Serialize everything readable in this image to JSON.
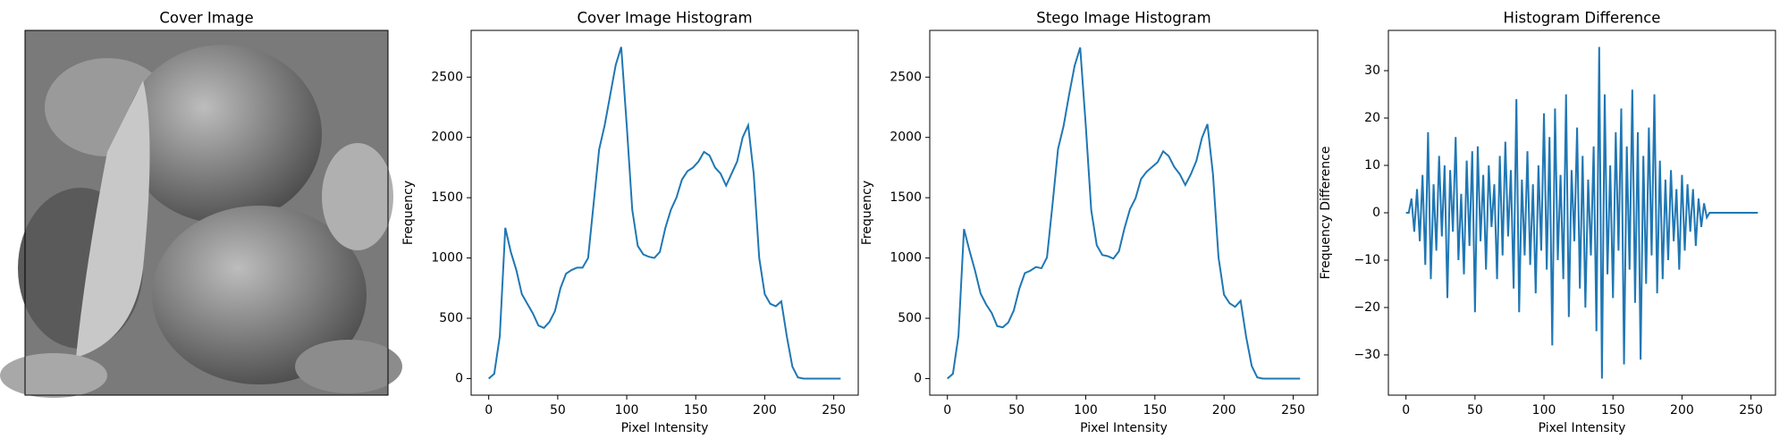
{
  "chart_data": [
    {
      "type": "image",
      "title": "Cover Image"
    },
    {
      "type": "line",
      "title": "Cover Image Histogram",
      "xlabel": "Pixel Intensity",
      "ylabel": "Frequency",
      "color": "#1f77b4",
      "x": [
        0,
        4,
        8,
        12,
        16,
        20,
        24,
        28,
        32,
        36,
        40,
        44,
        48,
        52,
        56,
        60,
        64,
        68,
        72,
        76,
        80,
        84,
        88,
        92,
        96,
        100,
        104,
        108,
        112,
        116,
        120,
        124,
        128,
        132,
        136,
        140,
        144,
        148,
        152,
        156,
        160,
        164,
        168,
        172,
        176,
        180,
        184,
        188,
        192,
        196,
        200,
        204,
        208,
        212,
        216,
        220,
        224,
        228,
        232,
        236,
        240,
        244,
        248,
        252,
        255
      ],
      "values": [
        0,
        40,
        350,
        1250,
        1050,
        900,
        700,
        620,
        540,
        440,
        420,
        470,
        560,
        750,
        870,
        900,
        920,
        920,
        1000,
        1450,
        1900,
        2100,
        2350,
        2600,
        2750,
        2100,
        1400,
        1100,
        1030,
        1010,
        1000,
        1050,
        1250,
        1400,
        1500,
        1650,
        1720,
        1750,
        1800,
        1880,
        1850,
        1750,
        1700,
        1600,
        1700,
        1800,
        2000,
        2100,
        1700,
        1000,
        700,
        620,
        600,
        640,
        350,
        100,
        10,
        0,
        0,
        0,
        0,
        0,
        0,
        0,
        0
      ],
      "xlim": [
        -12.75,
        267.75
      ],
      "ylim": [
        -137.5,
        2887.5
      ],
      "xticks": [
        0,
        50,
        100,
        150,
        200,
        250
      ],
      "yticks": [
        0,
        500,
        1000,
        1500,
        2000,
        2500
      ]
    },
    {
      "type": "line",
      "title": "Stego Image Histogram",
      "xlabel": "Pixel Intensity",
      "ylabel": "Frequency",
      "color": "#1f77b4",
      "x": [
        0,
        4,
        8,
        12,
        16,
        20,
        24,
        28,
        32,
        36,
        40,
        44,
        48,
        52,
        56,
        60,
        64,
        68,
        72,
        76,
        80,
        84,
        88,
        92,
        96,
        100,
        104,
        108,
        112,
        116,
        120,
        124,
        128,
        132,
        136,
        140,
        144,
        148,
        152,
        156,
        160,
        164,
        168,
        172,
        176,
        180,
        184,
        188,
        192,
        196,
        200,
        204,
        208,
        212,
        216,
        220,
        224,
        228,
        232,
        236,
        240,
        244,
        248,
        252,
        255
      ],
      "values": [
        0,
        40,
        355,
        1240,
        1060,
        895,
        705,
        615,
        545,
        435,
        425,
        465,
        565,
        745,
        875,
        895,
        925,
        915,
        1005,
        1445,
        1905,
        2095,
        2355,
        2595,
        2745,
        2105,
        1395,
        1105,
        1025,
        1015,
        995,
        1055,
        1245,
        1405,
        1495,
        1655,
        1715,
        1755,
        1795,
        1885,
        1845,
        1755,
        1695,
        1605,
        1695,
        1805,
        1995,
        2110,
        1695,
        1005,
        695,
        625,
        595,
        645,
        345,
        105,
        10,
        0,
        0,
        0,
        0,
        0,
        0,
        0,
        0
      ],
      "xlim": [
        -12.75,
        267.75
      ],
      "ylim": [
        -137.5,
        2887.5
      ],
      "xticks": [
        0,
        50,
        100,
        150,
        200,
        250
      ],
      "yticks": [
        0,
        500,
        1000,
        1500,
        2000,
        2500
      ]
    },
    {
      "type": "line",
      "title": "Histogram Difference",
      "xlabel": "Pixel Intensity",
      "ylabel": "Frequency Difference",
      "color": "#1f77b4",
      "x": [
        0,
        2,
        4,
        6,
        8,
        10,
        12,
        14,
        16,
        18,
        20,
        22,
        24,
        26,
        28,
        30,
        32,
        34,
        36,
        38,
        40,
        42,
        44,
        46,
        48,
        50,
        52,
        54,
        56,
        58,
        60,
        62,
        64,
        66,
        68,
        70,
        72,
        74,
        76,
        78,
        80,
        82,
        84,
        86,
        88,
        90,
        92,
        94,
        96,
        98,
        100,
        102,
        104,
        106,
        108,
        110,
        112,
        114,
        116,
        118,
        120,
        122,
        124,
        126,
        128,
        130,
        132,
        134,
        136,
        138,
        140,
        142,
        144,
        146,
        148,
        150,
        152,
        154,
        156,
        158,
        160,
        162,
        164,
        166,
        168,
        170,
        172,
        174,
        176,
        178,
        180,
        182,
        184,
        186,
        188,
        190,
        192,
        194,
        196,
        198,
        200,
        202,
        204,
        206,
        208,
        210,
        212,
        214,
        216,
        218,
        220,
        230,
        240,
        255
      ],
      "values": [
        0,
        0,
        3,
        -4,
        5,
        -6,
        8,
        -11,
        17,
        -14,
        6,
        -8,
        12,
        -5,
        10,
        -18,
        9,
        -4,
        16,
        -10,
        4,
        -13,
        11,
        -7,
        13,
        -21,
        14,
        -6,
        8,
        -12,
        10,
        -3,
        6,
        -14,
        12,
        -9,
        15,
        -5,
        9,
        -16,
        24,
        -21,
        7,
        -9,
        13,
        -11,
        6,
        -17,
        10,
        -8,
        21,
        -12,
        16,
        -28,
        22,
        -10,
        8,
        -14,
        25,
        -22,
        9,
        -6,
        18,
        -16,
        12,
        -20,
        7,
        -9,
        14,
        -25,
        35,
        -35,
        25,
        -13,
        10,
        -18,
        17,
        -8,
        22,
        -32,
        14,
        -12,
        26,
        -19,
        17,
        -31,
        12,
        -15,
        18,
        -9,
        25,
        -17,
        11,
        -14,
        7,
        -10,
        9,
        -6,
        5,
        -12,
        8,
        -8,
        6,
        -4,
        5,
        -7,
        3,
        -3,
        2,
        -1,
        0,
        0,
        0,
        0
      ],
      "xlim": [
        -12.75,
        267.75
      ],
      "ylim": [
        -38.5,
        38.5
      ],
      "xticks": [
        0,
        50,
        100,
        150,
        200,
        250
      ],
      "yticks": [
        {
          "value": -30,
          "label": "−30"
        },
        {
          "value": -20,
          "label": "−20"
        },
        {
          "value": -10,
          "label": "−10"
        },
        0,
        10,
        20,
        30
      ]
    }
  ]
}
